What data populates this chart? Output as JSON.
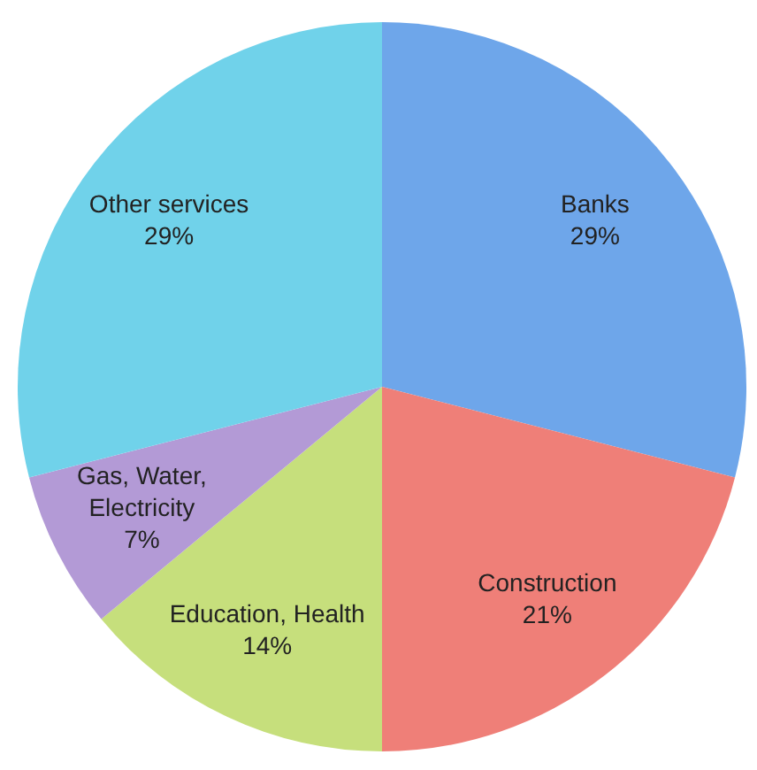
{
  "chart_data": {
    "type": "pie",
    "categories": [
      "Banks",
      "Construction",
      "Education, Health",
      "Gas, Water, Electricity",
      "Other services"
    ],
    "values": [
      29,
      21,
      14,
      7,
      29
    ],
    "value_labels": [
      "29%",
      "21%",
      "14%",
      "7%",
      "29%"
    ],
    "colors": [
      "#6ea6ea",
      "#ef7f78",
      "#c6df7c",
      "#b39ad6",
      "#70d2ea"
    ],
    "legend": false
  }
}
